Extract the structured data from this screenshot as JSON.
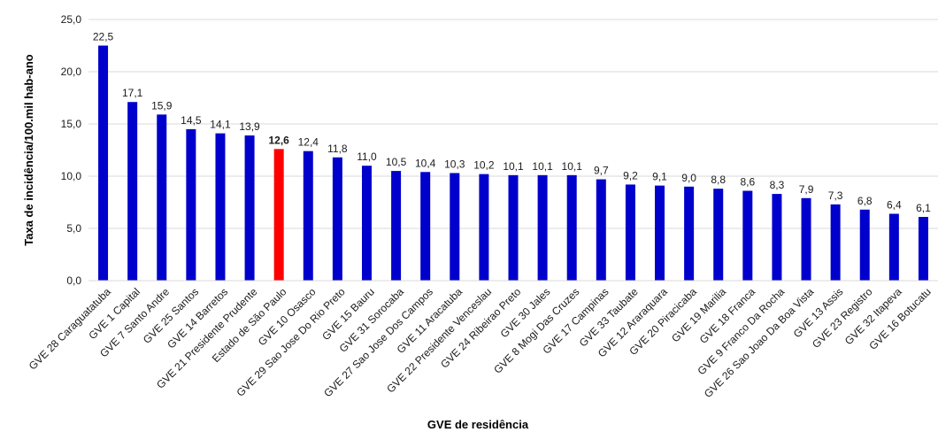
{
  "chart_data": {
    "type": "bar",
    "xlabel": "GVE de residência",
    "ylabel": "Taxa de incidência/100.mil hab-ano",
    "ylim": [
      0,
      25
    ],
    "yticks": [
      "0,0",
      "5,0",
      "10,0",
      "15,0",
      "20,0",
      "25,0"
    ],
    "grid": true,
    "colors": {
      "bar": "#0000cc",
      "highlight": "#ff0000",
      "grid": "#d9d9d9"
    },
    "highlight_category": "Estado de São Paulo",
    "categories": [
      "GVE 28 Caraguatatuba",
      "GVE 1 Capital",
      "GVE 7 Santo Andre",
      "GVE 25 Santos",
      "GVE 14 Barretos",
      "GVE 21 Presidente Prudente",
      "Estado de São Paulo",
      "GVE 10 Osasco",
      "GVE 29 Sao Jose Do Rio Preto",
      "GVE 15 Bauru",
      "GVE 31 Sorocaba",
      "GVE 27 Sao Jose Dos Campos",
      "GVE 11 Aracatuba",
      "GVE 22 Presidente Venceslau",
      "GVE 24 Ribeirao Preto",
      "GVE 30 Jales",
      "GVE 8 Mogi Das Cruzes",
      "GVE 17 Campinas",
      "GVE 33 Taubate",
      "GVE 12 Araraquara",
      "GVE 20 Piracicaba",
      "GVE 19 Marilia",
      "GVE 18 Franca",
      "GVE 9 Franco Da Rocha",
      "GVE 26 Sao Joao Da Boa Vista",
      "GVE 13 Assis",
      "GVE 23 Registro",
      "GVE 32 Itapeva",
      "GVE 16 Botucatu"
    ],
    "values": [
      22.5,
      17.1,
      15.9,
      14.5,
      14.1,
      13.9,
      12.6,
      12.4,
      11.8,
      11.0,
      10.5,
      10.4,
      10.3,
      10.2,
      10.1,
      10.1,
      10.1,
      9.7,
      9.2,
      9.1,
      9.0,
      8.8,
      8.6,
      8.3,
      7.9,
      7.3,
      6.8,
      6.4,
      6.1
    ],
    "value_labels": [
      "22,5",
      "17,1",
      "15,9",
      "14,5",
      "14,1",
      "13,9",
      "12,6",
      "12,4",
      "11,8",
      "11,0",
      "10,5",
      "10,4",
      "10,3",
      "10,2",
      "10,1",
      "10,1",
      "10,1",
      "9,7",
      "9,2",
      "9,1",
      "9,0",
      "8,8",
      "8,6",
      "8,3",
      "7,9",
      "7,3",
      "6,8",
      "6,4",
      "6,1"
    ]
  }
}
